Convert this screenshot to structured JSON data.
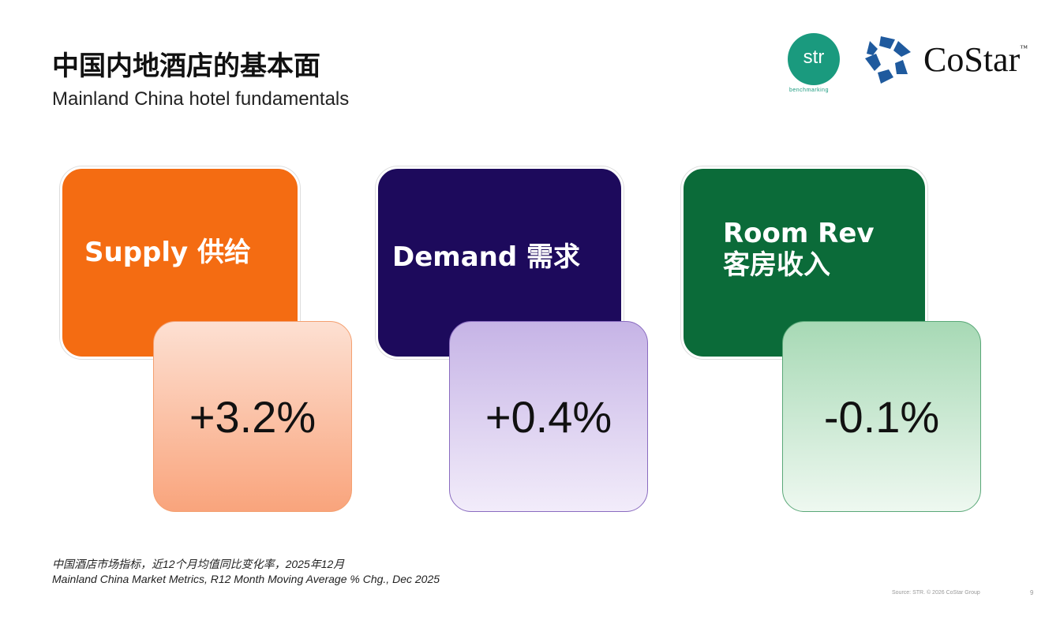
{
  "header": {
    "title": "中国内地酒店的基本面",
    "subtitle": "Mainland China hotel fundamentals"
  },
  "logos": {
    "str": "str",
    "str_tagline": "benchmarking",
    "costar": "CoStar",
    "costar_tm": "™"
  },
  "colors": {
    "supply": "#f46c12",
    "demand": "#1d0a5c",
    "room_rev": "#0b6b39"
  },
  "metrics": [
    {
      "label_en": "Supply",
      "label_cn": "供给",
      "value": "+3.2%"
    },
    {
      "label_en": "Demand",
      "label_cn": "需求",
      "value": "+0.4%"
    },
    {
      "label_en": "Room Rev",
      "label_cn": "客房收入",
      "value": "-0.1%"
    }
  ],
  "note": {
    "cn": "中国酒店市场指标，近12个月均值同比变化率，2025年12月",
    "en": "Mainland China Market Metrics, R12 Month Moving Average % Chg., Dec 2025"
  },
  "footer": {
    "source": "Source: STR. © 2026 CoStar Group",
    "page": "9"
  }
}
